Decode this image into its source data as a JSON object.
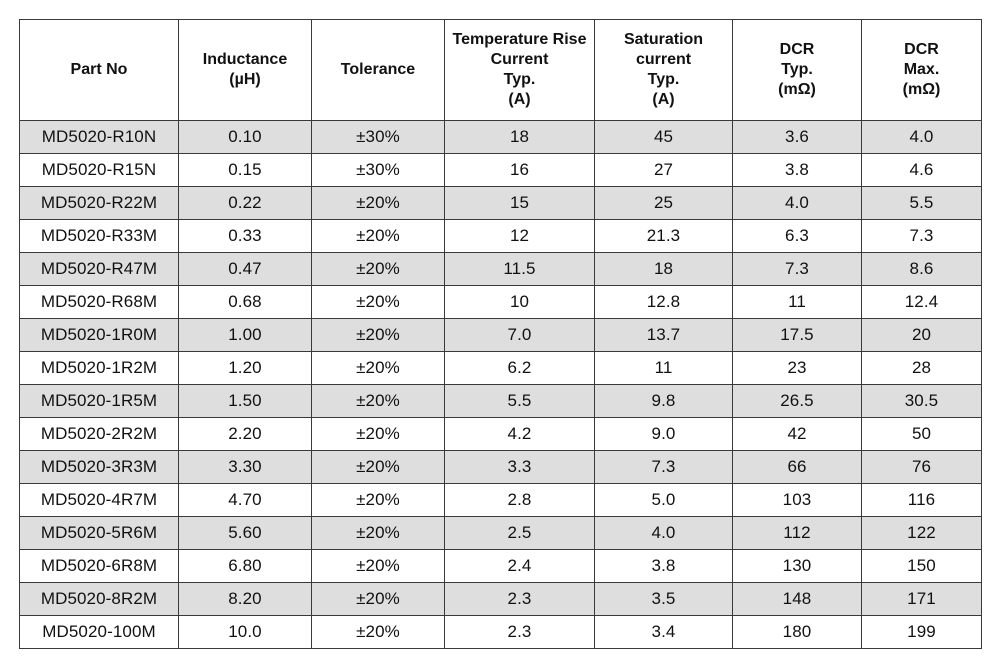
{
  "table": {
    "headers": [
      [
        "Part No"
      ],
      [
        "Inductance",
        "(µH)"
      ],
      [
        "Tolerance"
      ],
      [
        "Temperature Rise",
        "Current",
        "Typ.",
        "(A)"
      ],
      [
        "Saturation",
        "current",
        "Typ.",
        "(A)"
      ],
      [
        "DCR",
        "Typ.",
        "(mΩ)"
      ],
      [
        "DCR",
        "Max.",
        "(mΩ)"
      ]
    ],
    "rows": [
      [
        "MD5020-R10N",
        "0.10",
        "±30%",
        "18",
        "45",
        "3.6",
        "4.0"
      ],
      [
        "MD5020-R15N",
        "0.15",
        "±30%",
        "16",
        "27",
        "3.8",
        "4.6"
      ],
      [
        "MD5020-R22M",
        "0.22",
        "±20%",
        "15",
        "25",
        "4.0",
        "5.5"
      ],
      [
        "MD5020-R33M",
        "0.33",
        "±20%",
        "12",
        "21.3",
        "6.3",
        "7.3"
      ],
      [
        "MD5020-R47M",
        "0.47",
        "±20%",
        "11.5",
        "18",
        "7.3",
        "8.6"
      ],
      [
        "MD5020-R68M",
        "0.68",
        "±20%",
        "10",
        "12.8",
        "11",
        "12.4"
      ],
      [
        "MD5020-1R0M",
        "1.00",
        "±20%",
        "7.0",
        "13.7",
        "17.5",
        "20"
      ],
      [
        "MD5020-1R2M",
        "1.20",
        "±20%",
        "6.2",
        "11",
        "23",
        "28"
      ],
      [
        "MD5020-1R5M",
        "1.50",
        "±20%",
        "5.5",
        "9.8",
        "26.5",
        "30.5"
      ],
      [
        "MD5020-2R2M",
        "2.20",
        "±20%",
        "4.2",
        "9.0",
        "42",
        "50"
      ],
      [
        "MD5020-3R3M",
        "3.30",
        "±20%",
        "3.3",
        "7.3",
        "66",
        "76"
      ],
      [
        "MD5020-4R7M",
        "4.70",
        "±20%",
        "2.8",
        "5.0",
        "103",
        "116"
      ],
      [
        "MD5020-5R6M",
        "5.60",
        "±20%",
        "2.5",
        "4.0",
        "112",
        "122"
      ],
      [
        "MD5020-6R8M",
        "6.80",
        "±20%",
        "2.4",
        "3.8",
        "130",
        "150"
      ],
      [
        "MD5020-8R2M",
        "8.20",
        "±20%",
        "2.3",
        "3.5",
        "148",
        "171"
      ],
      [
        "MD5020-100M",
        "10.0",
        "±20%",
        "2.3",
        "3.4",
        "180",
        "199"
      ]
    ],
    "shaded_row_color": "#dedede"
  }
}
